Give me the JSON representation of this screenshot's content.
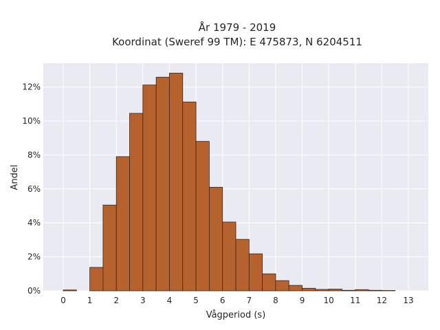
{
  "chart_data": {
    "type": "bar",
    "title": "År 1979 - 2019",
    "subtitle": "Koordinat (Sweref 99 TM): E 475873, N 6204511",
    "xlabel": "Vågperiod (s)",
    "ylabel": "Andel",
    "x_ticks": [
      "0",
      "1",
      "2",
      "3",
      "4",
      "5",
      "6",
      "7",
      "8",
      "9",
      "10",
      "11",
      "12",
      "13"
    ],
    "y_ticks": [
      "0%",
      "2%",
      "4%",
      "6%",
      "8%",
      "10%",
      "12%"
    ],
    "x_range": [
      -0.75,
      13.75
    ],
    "y_range": [
      0,
      13.4
    ],
    "bin_width": 0.5,
    "bins": [
      {
        "x0": 0.0,
        "value": 0.05
      },
      {
        "x0": 0.5,
        "value": 0.0
      },
      {
        "x0": 1.0,
        "value": 1.38
      },
      {
        "x0": 1.5,
        "value": 5.05
      },
      {
        "x0": 2.0,
        "value": 7.9
      },
      {
        "x0": 2.5,
        "value": 10.45
      },
      {
        "x0": 3.0,
        "value": 12.12
      },
      {
        "x0": 3.5,
        "value": 12.58
      },
      {
        "x0": 4.0,
        "value": 12.82
      },
      {
        "x0": 4.5,
        "value": 11.12
      },
      {
        "x0": 5.0,
        "value": 8.8
      },
      {
        "x0": 5.5,
        "value": 6.1
      },
      {
        "x0": 6.0,
        "value": 4.05
      },
      {
        "x0": 6.5,
        "value": 3.03
      },
      {
        "x0": 7.0,
        "value": 2.18
      },
      {
        "x0": 7.5,
        "value": 1.0
      },
      {
        "x0": 8.0,
        "value": 0.6
      },
      {
        "x0": 8.5,
        "value": 0.32
      },
      {
        "x0": 9.0,
        "value": 0.15
      },
      {
        "x0": 9.5,
        "value": 0.08
      },
      {
        "x0": 10.0,
        "value": 0.1
      },
      {
        "x0": 10.5,
        "value": 0.03
      },
      {
        "x0": 11.0,
        "value": 0.07
      },
      {
        "x0": 11.5,
        "value": 0.03
      },
      {
        "x0": 12.0,
        "value": 0.02
      },
      {
        "x0": 12.5,
        "value": 0.0
      }
    ],
    "grid": true,
    "colors": {
      "bar_fill": "#b5622f",
      "bar_edge": "#3b2416",
      "plot_background": "#eaeaf2",
      "grid": "#ffffff"
    }
  }
}
